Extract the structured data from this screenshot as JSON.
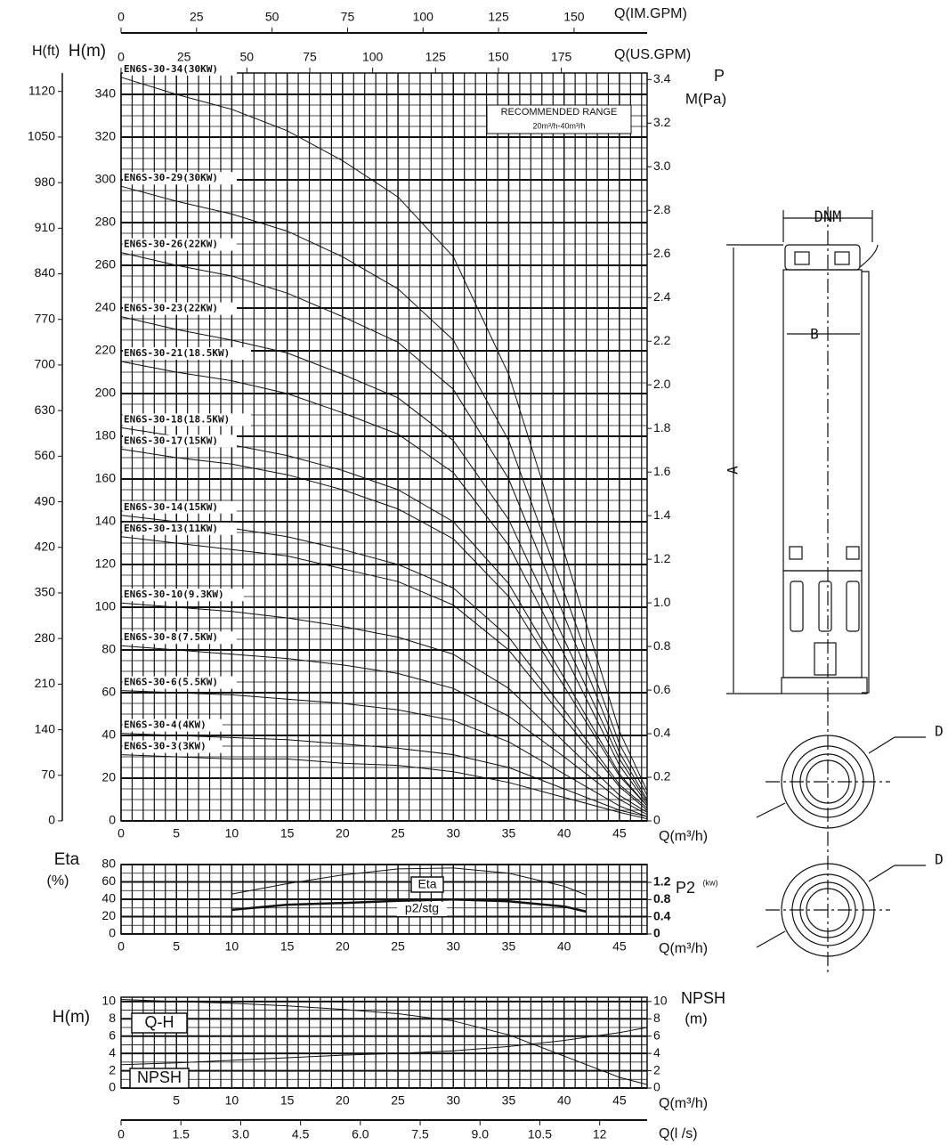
{
  "chart_data": [
    {
      "type": "line",
      "xlabel": "Q(m³/h)",
      "ylabel": "H(m)",
      "y2label": "P",
      "y2unit": "M(Pa)",
      "xlim": [
        0,
        47.5
      ],
      "xticks": [
        0,
        5,
        10,
        15,
        20,
        25,
        30,
        35,
        40,
        45
      ],
      "ylim": [
        0,
        350
      ],
      "yticks": [
        0,
        20,
        40,
        60,
        80,
        100,
        120,
        140,
        160,
        180,
        200,
        220,
        240,
        260,
        280,
        300,
        320,
        340
      ],
      "y2lim": [
        0,
        3.43
      ],
      "y2ticks": [
        0,
        0.2,
        0.4,
        0.6,
        0.8,
        {
          "value": 1,
          "label": "1.0"
        },
        1.2,
        1.4,
        1.6,
        1.8,
        {
          "value": 2,
          "label": "2.0"
        },
        2.2,
        2.4,
        2.6,
        2.8,
        {
          "value": 3,
          "label": "3.0"
        },
        3.2,
        3.4
      ],
      "grid": true,
      "extra_axes": [
        {
          "title": "Q(IM.GPM)",
          "lim": [
            0,
            174.2
          ],
          "ticks": [
            0,
            25,
            50,
            75,
            100,
            125,
            150
          ]
        },
        {
          "title": "Q(US.GPM)",
          "lim": [
            0,
            209.1
          ],
          "ticks": [
            0,
            25,
            50,
            75,
            100,
            125,
            150,
            175
          ]
        },
        {
          "title": "H(ft)",
          "lim": [
            0,
            1148.3
          ],
          "ticks": [
            0,
            70,
            140,
            210,
            280,
            350,
            420,
            490,
            560,
            630,
            700,
            770,
            840,
            910,
            980,
            1050,
            1120
          ]
        }
      ],
      "annotations": [
        "RECOMMENDED RANGE",
        "20m³/h-40m³/h"
      ],
      "x": [
        0,
        5,
        10,
        15,
        20,
        25,
        30,
        35,
        40,
        45,
        47.5
      ],
      "series": [
        {
          "name": "EN6S-30-34(30KW)",
          "color": "#111111",
          "values": [
            348,
            340,
            333,
            323,
            309,
            292,
            264,
            209,
            126,
            42,
            14
          ]
        },
        {
          "name": "EN6S-30-29(30KW)",
          "color": "#111111",
          "values": [
            297,
            290,
            284,
            276,
            264,
            249,
            225,
            178,
            107,
            36,
            12
          ]
        },
        {
          "name": "EN6S-30-26(22KW)",
          "color": "#111111",
          "values": [
            266,
            260,
            255,
            247,
            236,
            224,
            202,
            160,
            96,
            32,
            10
          ]
        },
        {
          "name": "EN6S-30-23(22KW)",
          "color": "#111111",
          "values": [
            236,
            230,
            225,
            219,
            209,
            198,
            178,
            141,
            85,
            29,
            9
          ]
        },
        {
          "name": "EN6S-30-21(18.5KW)",
          "color": "#111111",
          "values": [
            215,
            210,
            206,
            200,
            191,
            181,
            163,
            129,
            78,
            26,
            8
          ]
        },
        {
          "name": "EN6S-30-18(18.5KW)",
          "color": "#111111",
          "values": [
            184,
            180,
            176,
            171,
            164,
            155,
            140,
            111,
            67,
            22,
            7
          ]
        },
        {
          "name": "EN6S-30-17(15KW)",
          "color": "#111111",
          "values": [
            174,
            170,
            167,
            162,
            155,
            146,
            132,
            105,
            63,
            21,
            7
          ]
        },
        {
          "name": "EN6S-30-14(15KW)",
          "color": "#111111",
          "values": [
            143,
            140,
            137,
            133,
            127,
            120,
            109,
            86,
            52,
            17,
            6
          ]
        },
        {
          "name": "EN6S-30-13(11KW)",
          "color": "#111111",
          "values": [
            133,
            130,
            127,
            124,
            118,
            112,
            101,
            80,
            48,
            16,
            5
          ]
        },
        {
          "name": "EN6S-30-10(9.3KW)",
          "color": "#111111",
          "values": [
            102,
            100,
            98,
            95,
            91,
            86,
            78,
            62,
            37,
            12,
            4
          ]
        },
        {
          "name": "EN6S-30-8(7.5KW)",
          "color": "#111111",
          "values": [
            82,
            80,
            78,
            76,
            73,
            69,
            62,
            49,
            30,
            10,
            3
          ]
        },
        {
          "name": "EN6S-30-6(5.5KW)",
          "color": "#111111",
          "values": [
            61,
            60,
            59,
            57,
            55,
            52,
            47,
            37,
            22,
            7,
            2
          ]
        },
        {
          "name": "EN6S-30-4(4KW)",
          "color": "#111111",
          "values": [
            41,
            40,
            39,
            38,
            36,
            34,
            31,
            25,
            15,
            5,
            2
          ]
        },
        {
          "name": "EN6S-30-3(3KW)",
          "color": "#111111",
          "values": [
            31,
            30,
            29,
            29,
            27,
            26,
            23,
            18,
            11,
            4,
            1
          ]
        }
      ]
    },
    {
      "type": "line",
      "xlabel": "Q(m³/h)",
      "ylabel": "Eta",
      "yunit": "(%)",
      "y2label": "P2",
      "y2unit": "(kw)",
      "xlim": [
        0,
        47.5
      ],
      "xticks": [
        0,
        5,
        10,
        15,
        20,
        25,
        30,
        35,
        40,
        45
      ],
      "ylim": [
        0,
        80
      ],
      "yticks": [
        0,
        20,
        40,
        60,
        80
      ],
      "y2lim": [
        0,
        1.614
      ],
      "y2ticks": [
        0,
        0.4,
        0.8,
        1.2
      ],
      "grid": true,
      "x": [
        10,
        15,
        20,
        25,
        30,
        35,
        40,
        42
      ],
      "series": [
        {
          "name": "Eta",
          "color": "#111111",
          "values": [
            46,
            58,
            68,
            75,
            76,
            70,
            55,
            45
          ]
        },
        {
          "name": "p2/stg",
          "color": "#111111",
          "axis": "y2",
          "linewidth": 2.5,
          "values": [
            0.56,
            0.68,
            0.72,
            0.77,
            0.8,
            0.76,
            0.64,
            0.52
          ]
        }
      ]
    },
    {
      "type": "line",
      "xlabel": "Q(m³/h)",
      "ylabel": "H(m)",
      "y2label": "NPSH",
      "y2unit": "(m)",
      "xlim": [
        0,
        47.5
      ],
      "xticks": [
        5,
        10,
        15,
        20,
        25,
        30,
        35,
        40,
        45
      ],
      "ylim": [
        0,
        10.5
      ],
      "yticks": [
        0,
        2,
        4,
        6,
        8,
        10
      ],
      "y2lim": [
        0,
        10.5
      ],
      "y2ticks": [
        0,
        2,
        4,
        6,
        8,
        10
      ],
      "grid": true,
      "extra_axes": [
        {
          "title": "Q(l /s)",
          "lim": [
            0,
            13.19
          ],
          "ticks": [
            0,
            1.5,
            {
              "value": 3,
              "label": "3.0"
            },
            4.5,
            {
              "value": 6,
              "label": "6.0"
            },
            7.5,
            {
              "value": 9,
              "label": "9.0"
            },
            10.5,
            12
          ]
        }
      ],
      "x": [
        0,
        5,
        10,
        15,
        20,
        25,
        30,
        35,
        40,
        45,
        47.5
      ],
      "series": [
        {
          "name": "Q-H",
          "color": "#111111",
          "values": [
            10.24,
            10.0,
            9.8,
            9.5,
            9.09,
            8.6,
            7.75,
            6.15,
            3.7,
            1.24,
            0.4
          ]
        },
        {
          "name": "NPSH",
          "color": "#111111",
          "axis": "y2",
          "values": [
            2.7,
            2.9,
            3.2,
            3.5,
            3.8,
            4.0,
            4.3,
            4.8,
            5.5,
            6.4,
            7.0
          ]
        }
      ]
    }
  ],
  "drawing": {
    "labels": [
      "DNM",
      "B",
      "A",
      "D",
      "D"
    ]
  }
}
